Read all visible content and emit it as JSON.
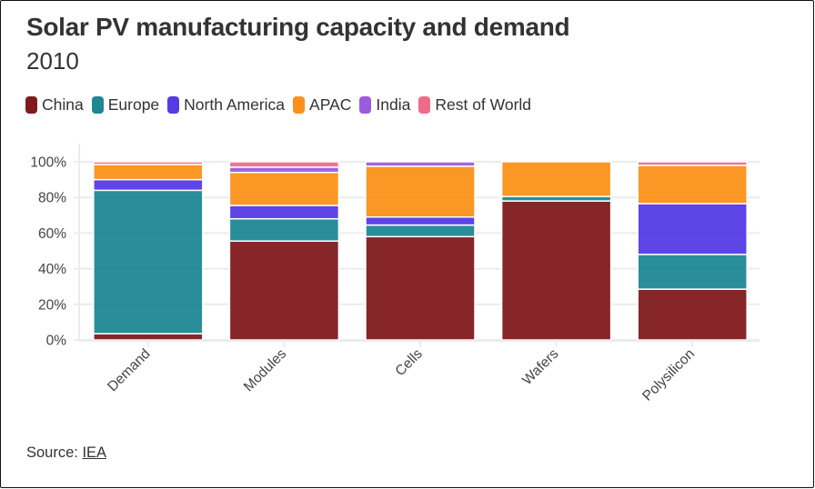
{
  "title": "Solar PV manufacturing capacity and demand",
  "subtitle": "2010",
  "legend": [
    {
      "name": "China",
      "color": "#7f1a1c"
    },
    {
      "name": "Europe",
      "color": "#1d8894"
    },
    {
      "name": "North America",
      "color": "#543be6"
    },
    {
      "name": "APAC",
      "color": "#fb9118"
    },
    {
      "name": "India",
      "color": "#9c5ce0"
    },
    {
      "name": "Rest of World",
      "color": "#f06b8a"
    }
  ],
  "source": {
    "label": "Source:",
    "link_text": "IEA"
  },
  "chart_data": {
    "type": "bar",
    "stacked": true,
    "title": "Solar PV manufacturing capacity and demand",
    "subtitle": "2010",
    "xlabel": "",
    "ylabel": "",
    "categories": [
      "Demand",
      "Modules",
      "Cells",
      "Wafers",
      "Polysilicon"
    ],
    "ylim": [
      0,
      100
    ],
    "yticks": [
      0,
      20,
      40,
      60,
      80,
      100
    ],
    "ytick_labels": [
      "0%",
      "20%",
      "40%",
      "60%",
      "80%",
      "100%"
    ],
    "grid": true,
    "legend_position": "top-left",
    "series": [
      {
        "name": "China",
        "color": "#7f1a1c",
        "values": [
          3.5,
          55.5,
          58,
          78,
          28.5
        ]
      },
      {
        "name": "Europe",
        "color": "#1d8894",
        "values": [
          80.5,
          12.5,
          6.5,
          2.5,
          19.5
        ]
      },
      {
        "name": "North America",
        "color": "#543be6",
        "values": [
          6,
          7.5,
          4.5,
          0,
          28.5
        ]
      },
      {
        "name": "APAC",
        "color": "#fb9118",
        "values": [
          8.5,
          18.5,
          28.5,
          19.5,
          21.5
        ]
      },
      {
        "name": "India",
        "color": "#9c5ce0",
        "values": [
          0,
          3,
          2.5,
          0,
          0
        ]
      },
      {
        "name": "Rest of World",
        "color": "#f06b8a",
        "values": [
          1.5,
          3,
          0,
          0,
          2
        ]
      }
    ]
  }
}
